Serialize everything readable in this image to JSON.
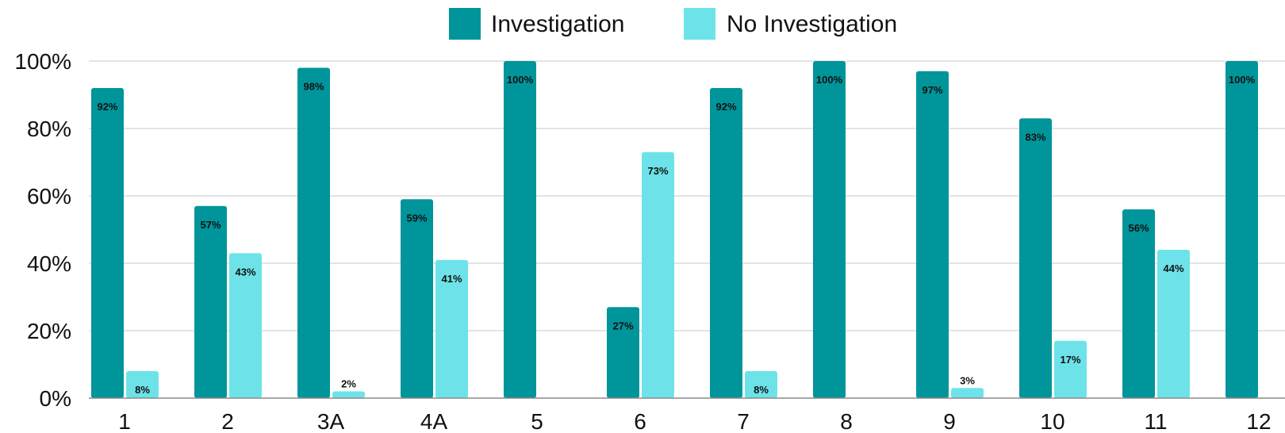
{
  "chart_data": {
    "type": "bar",
    "categories": [
      "1",
      "2",
      "3A",
      "4A",
      "5",
      "6",
      "7",
      "8",
      "9",
      "10",
      "11",
      "12"
    ],
    "series": [
      {
        "name": "Investigation",
        "color": "#00959a",
        "values": [
          92,
          57,
          98,
          59,
          100,
          27,
          92,
          100,
          97,
          83,
          56,
          100
        ],
        "labels": [
          "92%",
          "57%",
          "98%",
          "59%",
          "100%",
          "27%",
          "92%",
          "100%",
          "97%",
          "83%",
          "56%",
          "100%"
        ]
      },
      {
        "name": "No Investigation",
        "color": "#6de3e9",
        "values": [
          8,
          43,
          2,
          41,
          0,
          73,
          8,
          0,
          3,
          17,
          44,
          0
        ],
        "labels": [
          "8%",
          "43%",
          "2%",
          "41%",
          "",
          "73%",
          "8%",
          "",
          "3%",
          "17%",
          "44%",
          ""
        ]
      }
    ],
    "yticks": [
      "0%",
      "20%",
      "40%",
      "60%",
      "80%",
      "100%"
    ],
    "ylim": [
      0,
      100
    ],
    "grid": true,
    "legend": "top-center"
  }
}
